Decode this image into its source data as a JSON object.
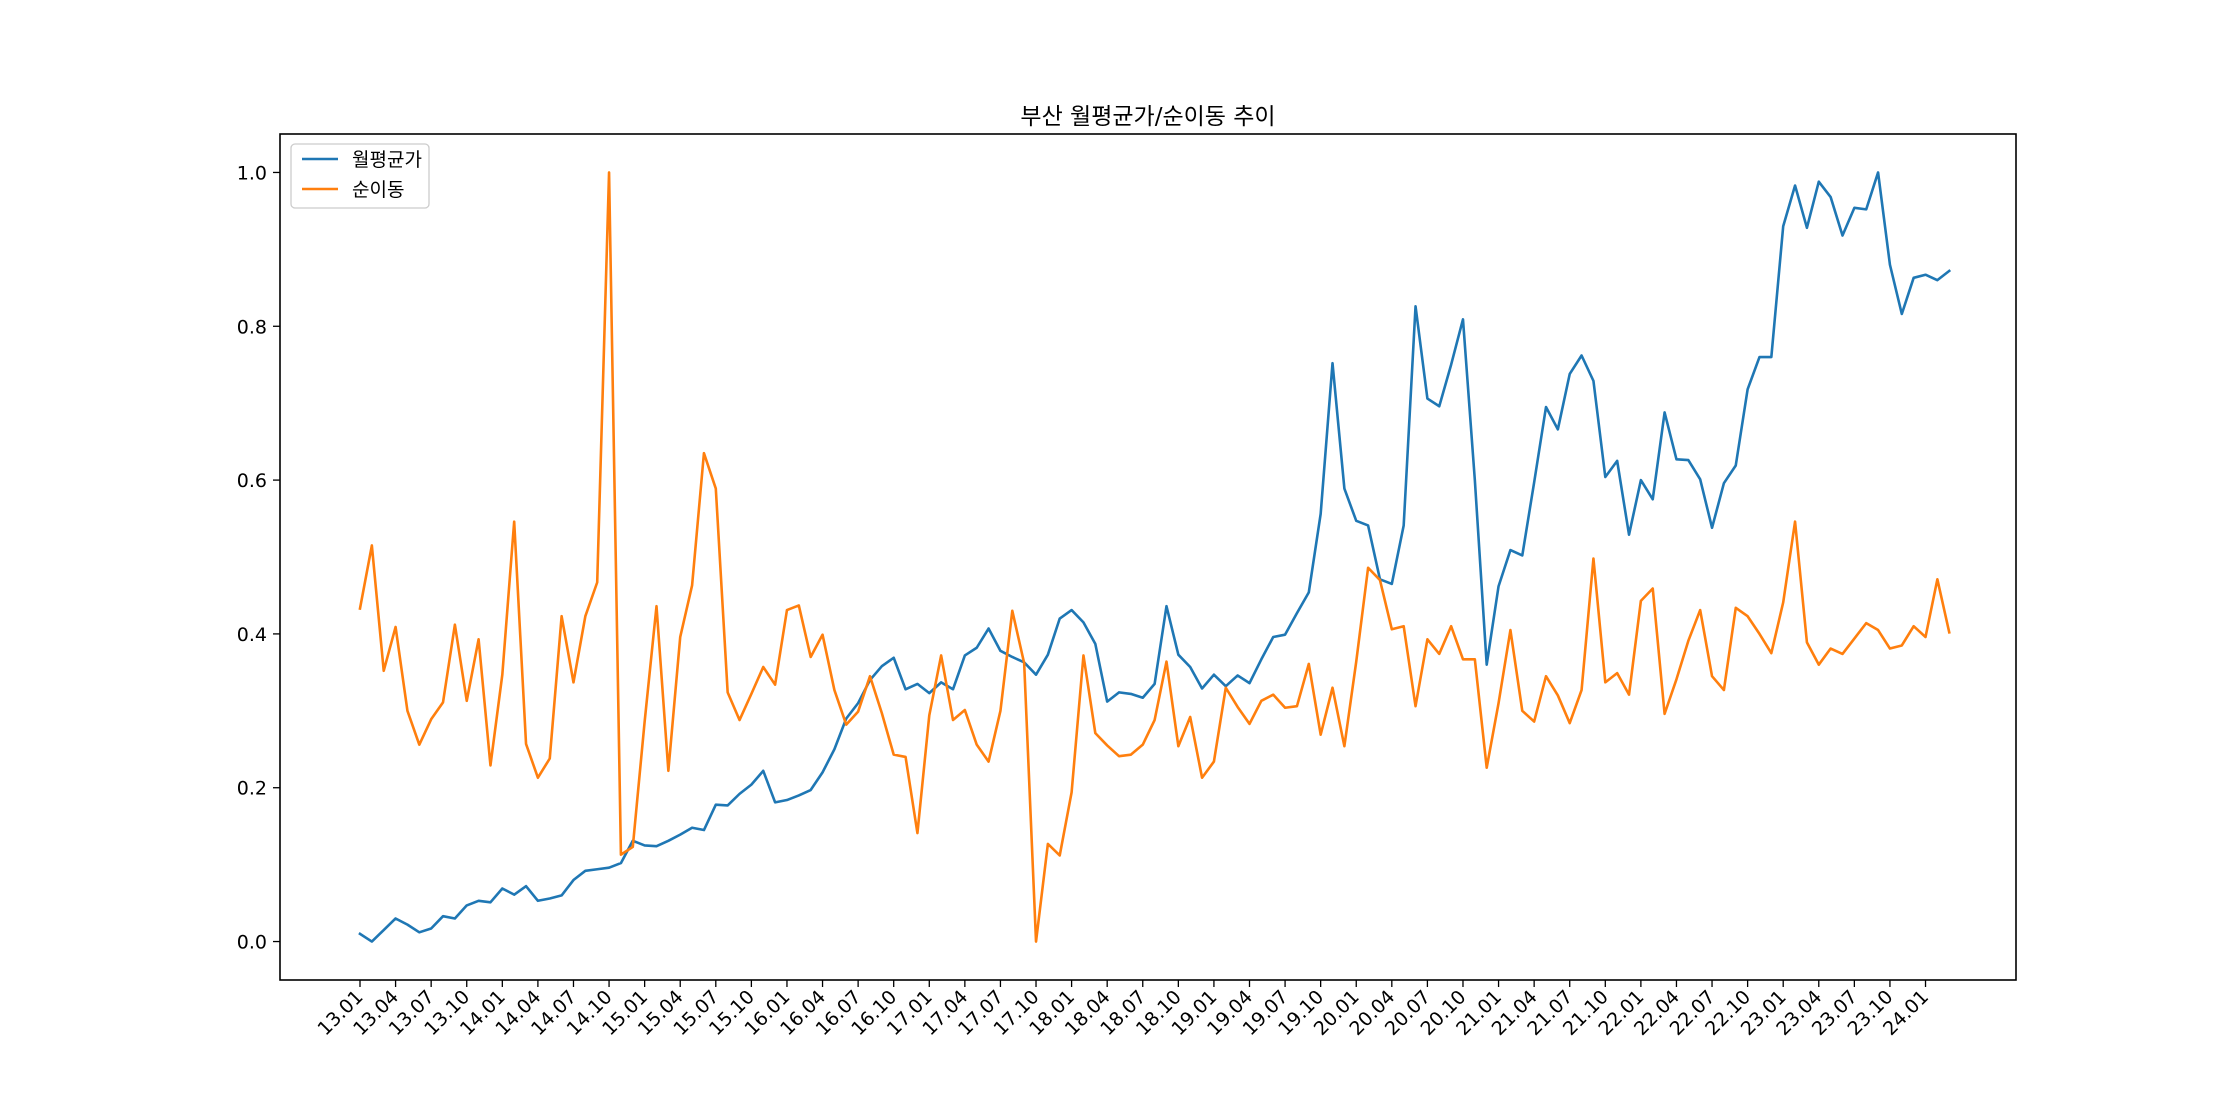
{
  "chart_data": {
    "type": "line",
    "title": "부산 월평균가/순이동 추이",
    "xlabel": "",
    "ylabel": "",
    "ylim": [
      -0.05,
      1.05
    ],
    "yticks": [
      "0.0",
      "0.2",
      "0.4",
      "0.6",
      "0.8",
      "1.0"
    ],
    "ytick_values": [
      0,
      0.2,
      0.4,
      0.6,
      0.8,
      1.0
    ],
    "xtick_labels": [
      "13.01",
      "13.04",
      "13.07",
      "13.10",
      "14.01",
      "14.04",
      "14.07",
      "14.10",
      "15.01",
      "15.04",
      "15.07",
      "15.10",
      "16.01",
      "16.04",
      "16.07",
      "16.10",
      "17.01",
      "17.04",
      "17.07",
      "17.10",
      "18.01",
      "18.04",
      "18.07",
      "18.10",
      "19.01",
      "19.04",
      "19.07",
      "19.10",
      "20.01",
      "20.04",
      "20.07",
      "20.10",
      "21.01",
      "21.04",
      "21.07",
      "21.10",
      "22.01",
      "22.04",
      "22.07",
      "22.10",
      "23.01",
      "23.04",
      "23.07",
      "23.10",
      "24.01"
    ],
    "start_month": "13.01",
    "grid": false,
    "legend_position": "top-left",
    "series": [
      {
        "name": "월평균가",
        "color": "#1f77b4",
        "values": [
          0.01,
          0.0,
          0.015,
          0.03,
          0.022,
          0.012,
          0.017,
          0.033,
          0.03,
          0.047,
          0.053,
          0.051,
          0.069,
          0.061,
          0.072,
          0.053,
          0.056,
          0.06,
          0.08,
          0.092,
          0.094,
          0.096,
          0.102,
          0.131,
          0.125,
          0.124,
          0.131,
          0.139,
          0.148,
          0.145,
          0.178,
          0.177,
          0.192,
          0.204,
          0.222,
          0.181,
          0.184,
          0.19,
          0.197,
          0.22,
          0.25,
          0.29,
          0.31,
          0.34,
          0.358,
          0.369,
          0.328,
          0.335,
          0.323,
          0.337,
          0.328,
          0.372,
          0.382,
          0.407,
          0.378,
          0.37,
          0.363,
          0.347,
          0.373,
          0.42,
          0.431,
          0.415,
          0.387,
          0.312,
          0.324,
          0.322,
          0.317,
          0.335,
          0.436,
          0.373,
          0.357,
          0.329,
          0.347,
          0.332,
          0.346,
          0.336,
          0.367,
          0.396,
          0.399,
          0.427,
          0.454,
          0.556,
          0.752,
          0.589,
          0.547,
          0.541,
          0.471,
          0.465,
          0.541,
          0.826,
          0.706,
          0.696,
          0.75,
          0.809,
          0.6,
          0.36,
          0.462,
          0.509,
          0.502,
          0.597,
          0.695,
          0.666,
          0.738,
          0.762,
          0.729,
          0.604,
          0.625,
          0.529,
          0.6,
          0.575,
          0.688,
          0.627,
          0.626,
          0.601,
          0.538,
          0.596,
          0.619,
          0.718,
          0.76,
          0.76,
          0.93,
          0.983,
          0.928,
          0.988,
          0.968,
          0.918,
          0.954,
          0.952,
          1.0,
          0.88,
          0.816,
          0.863,
          0.867,
          0.86,
          0.872
        ]
      },
      {
        "name": "순이동",
        "color": "#ff7f0e",
        "values": [
          0.433,
          0.515,
          0.352,
          0.409,
          0.3,
          0.256,
          0.289,
          0.311,
          0.412,
          0.313,
          0.393,
          0.229,
          0.347,
          0.546,
          0.257,
          0.213,
          0.238,
          0.423,
          0.337,
          0.423,
          0.467,
          1.0,
          0.113,
          0.123,
          0.286,
          0.436,
          0.222,
          0.396,
          0.463,
          0.635,
          0.589,
          0.324,
          0.288,
          0.322,
          0.357,
          0.334,
          0.431,
          0.437,
          0.37,
          0.399,
          0.327,
          0.282,
          0.299,
          0.345,
          0.297,
          0.243,
          0.24,
          0.141,
          0.294,
          0.372,
          0.288,
          0.301,
          0.256,
          0.234,
          0.3,
          0.43,
          0.362,
          0.0,
          0.127,
          0.112,
          0.194,
          0.372,
          0.271,
          0.255,
          0.241,
          0.243,
          0.256,
          0.288,
          0.364,
          0.254,
          0.292,
          0.213,
          0.234,
          0.33,
          0.305,
          0.283,
          0.313,
          0.321,
          0.304,
          0.306,
          0.361,
          0.269,
          0.33,
          0.254,
          0.364,
          0.486,
          0.47,
          0.406,
          0.41,
          0.306,
          0.393,
          0.374,
          0.41,
          0.367,
          0.367,
          0.226,
          0.31,
          0.405,
          0.3,
          0.286,
          0.345,
          0.32,
          0.284,
          0.327,
          0.498,
          0.337,
          0.349,
          0.321,
          0.443,
          0.459,
          0.296,
          0.341,
          0.391,
          0.431,
          0.345,
          0.327,
          0.434,
          0.423,
          0.4,
          0.375,
          0.441,
          0.546,
          0.389,
          0.36,
          0.381,
          0.374,
          0.394,
          0.414,
          0.405,
          0.381,
          0.385,
          0.41,
          0.396,
          0.471,
          0.402
        ]
      }
    ]
  }
}
